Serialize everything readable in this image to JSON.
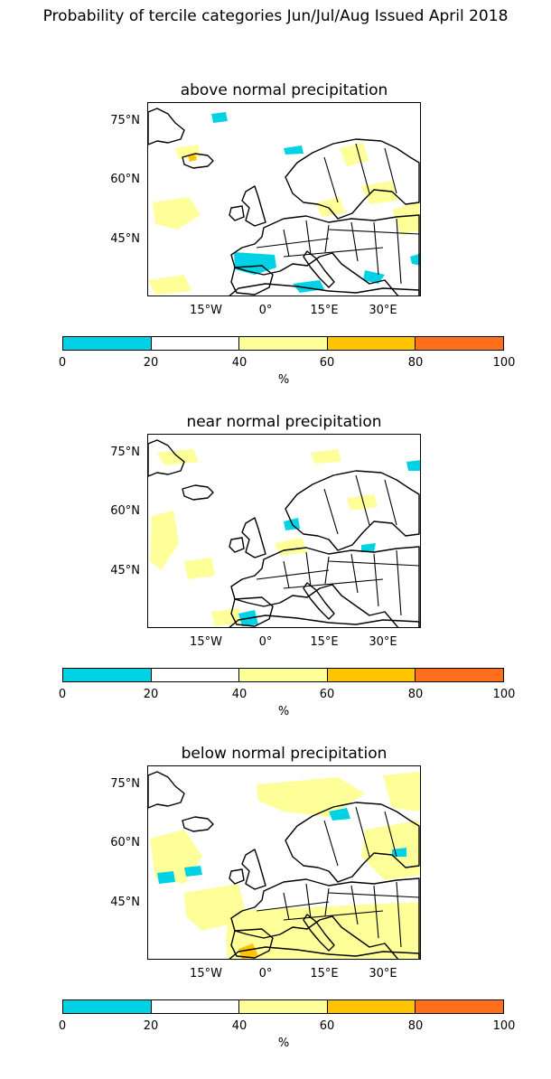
{
  "figure": {
    "title": "Probability of tercile categories Jun/Jul/Aug Issued April 2018"
  },
  "panels": [
    {
      "title": "above normal precipitation",
      "variant": "above"
    },
    {
      "title": "near normal precipitation",
      "variant": "near"
    },
    {
      "title": "below normal precipitation",
      "variant": "below"
    }
  ],
  "map": {
    "lat_labels": [
      "75°N",
      "60°N",
      "45°N"
    ],
    "lon_labels": [
      "15°W",
      "0°",
      "15°E",
      "30°E"
    ]
  },
  "colorbar": {
    "ticks": [
      "0",
      "20",
      "40",
      "60",
      "80",
      "100"
    ],
    "unit": "%",
    "colors": [
      "#00d2e6",
      "#ffffff",
      "#ffff99",
      "#ffc400",
      "#ff6f1c"
    ]
  },
  "palette": {
    "cyan": "#00d2e6",
    "yellow": "#ffff99",
    "orange": "#ffc400"
  }
}
